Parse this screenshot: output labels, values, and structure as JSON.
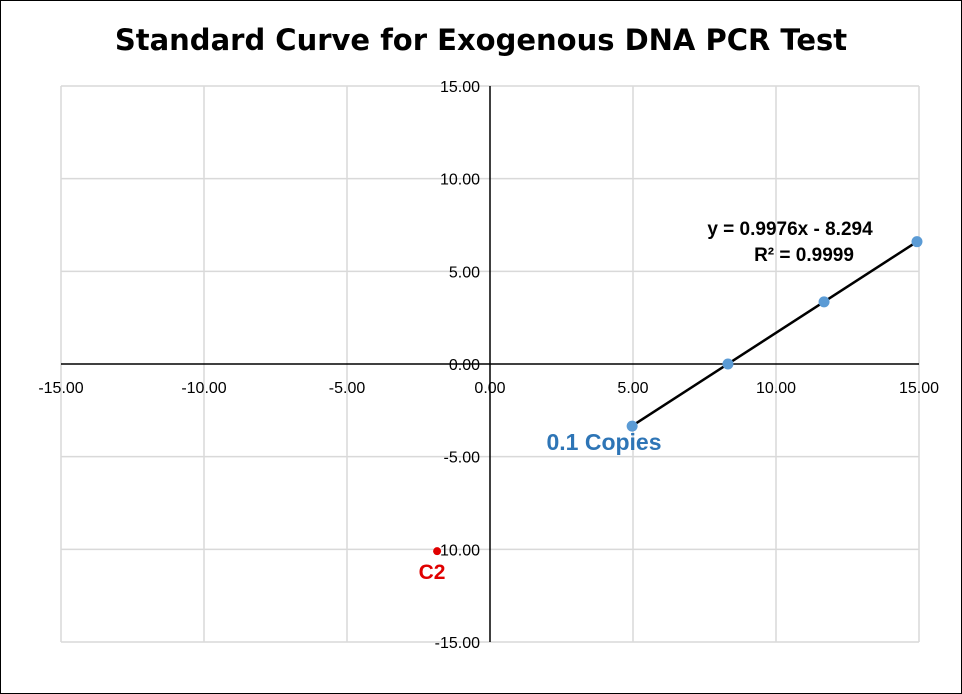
{
  "chart_data": {
    "type": "scatter",
    "title": "Standard Curve for Exogenous DNA PCR Test",
    "xlim": [
      -15,
      15
    ],
    "ylim": [
      -15,
      15
    ],
    "x_ticks": [
      -15,
      -10,
      -5,
      0,
      5,
      10,
      15
    ],
    "y_ticks": [
      -15,
      -10,
      -5,
      0,
      5,
      10,
      15
    ],
    "x_tick_labels": [
      "-15.00",
      "-10.00",
      "-5.00",
      "0.00",
      "5.00",
      "10.00",
      "15.00"
    ],
    "y_tick_labels": [
      "-15.00",
      "-10.00",
      "-5.00",
      "0.00",
      "5.00",
      "10.00",
      "15.00"
    ],
    "grid": true,
    "series": [
      {
        "color": "#5b9bd5",
        "points": [
          {
            "x": 4.97,
            "y": -3.35
          },
          {
            "x": 8.32,
            "y": 0.0
          },
          {
            "x": 11.68,
            "y": 3.35
          },
          {
            "x": 14.93,
            "y": 6.6
          }
        ]
      },
      {
        "color": "#e00000",
        "points": [
          {
            "x": -1.85,
            "y": -10.1
          }
        ]
      }
    ],
    "trendline": {
      "x_range": [
        4.97,
        14.93
      ],
      "slope": 0.9976,
      "intercept": -8.294,
      "color": "#000000"
    },
    "annotations": {
      "equation": "y = 0.9976x - 8.294",
      "r_squared": "R² = 0.9999",
      "copies_label": "0.1 Copies",
      "copies_color": "#2e75b6",
      "c2_label": "C2",
      "c2_color": "#e00000"
    }
  }
}
